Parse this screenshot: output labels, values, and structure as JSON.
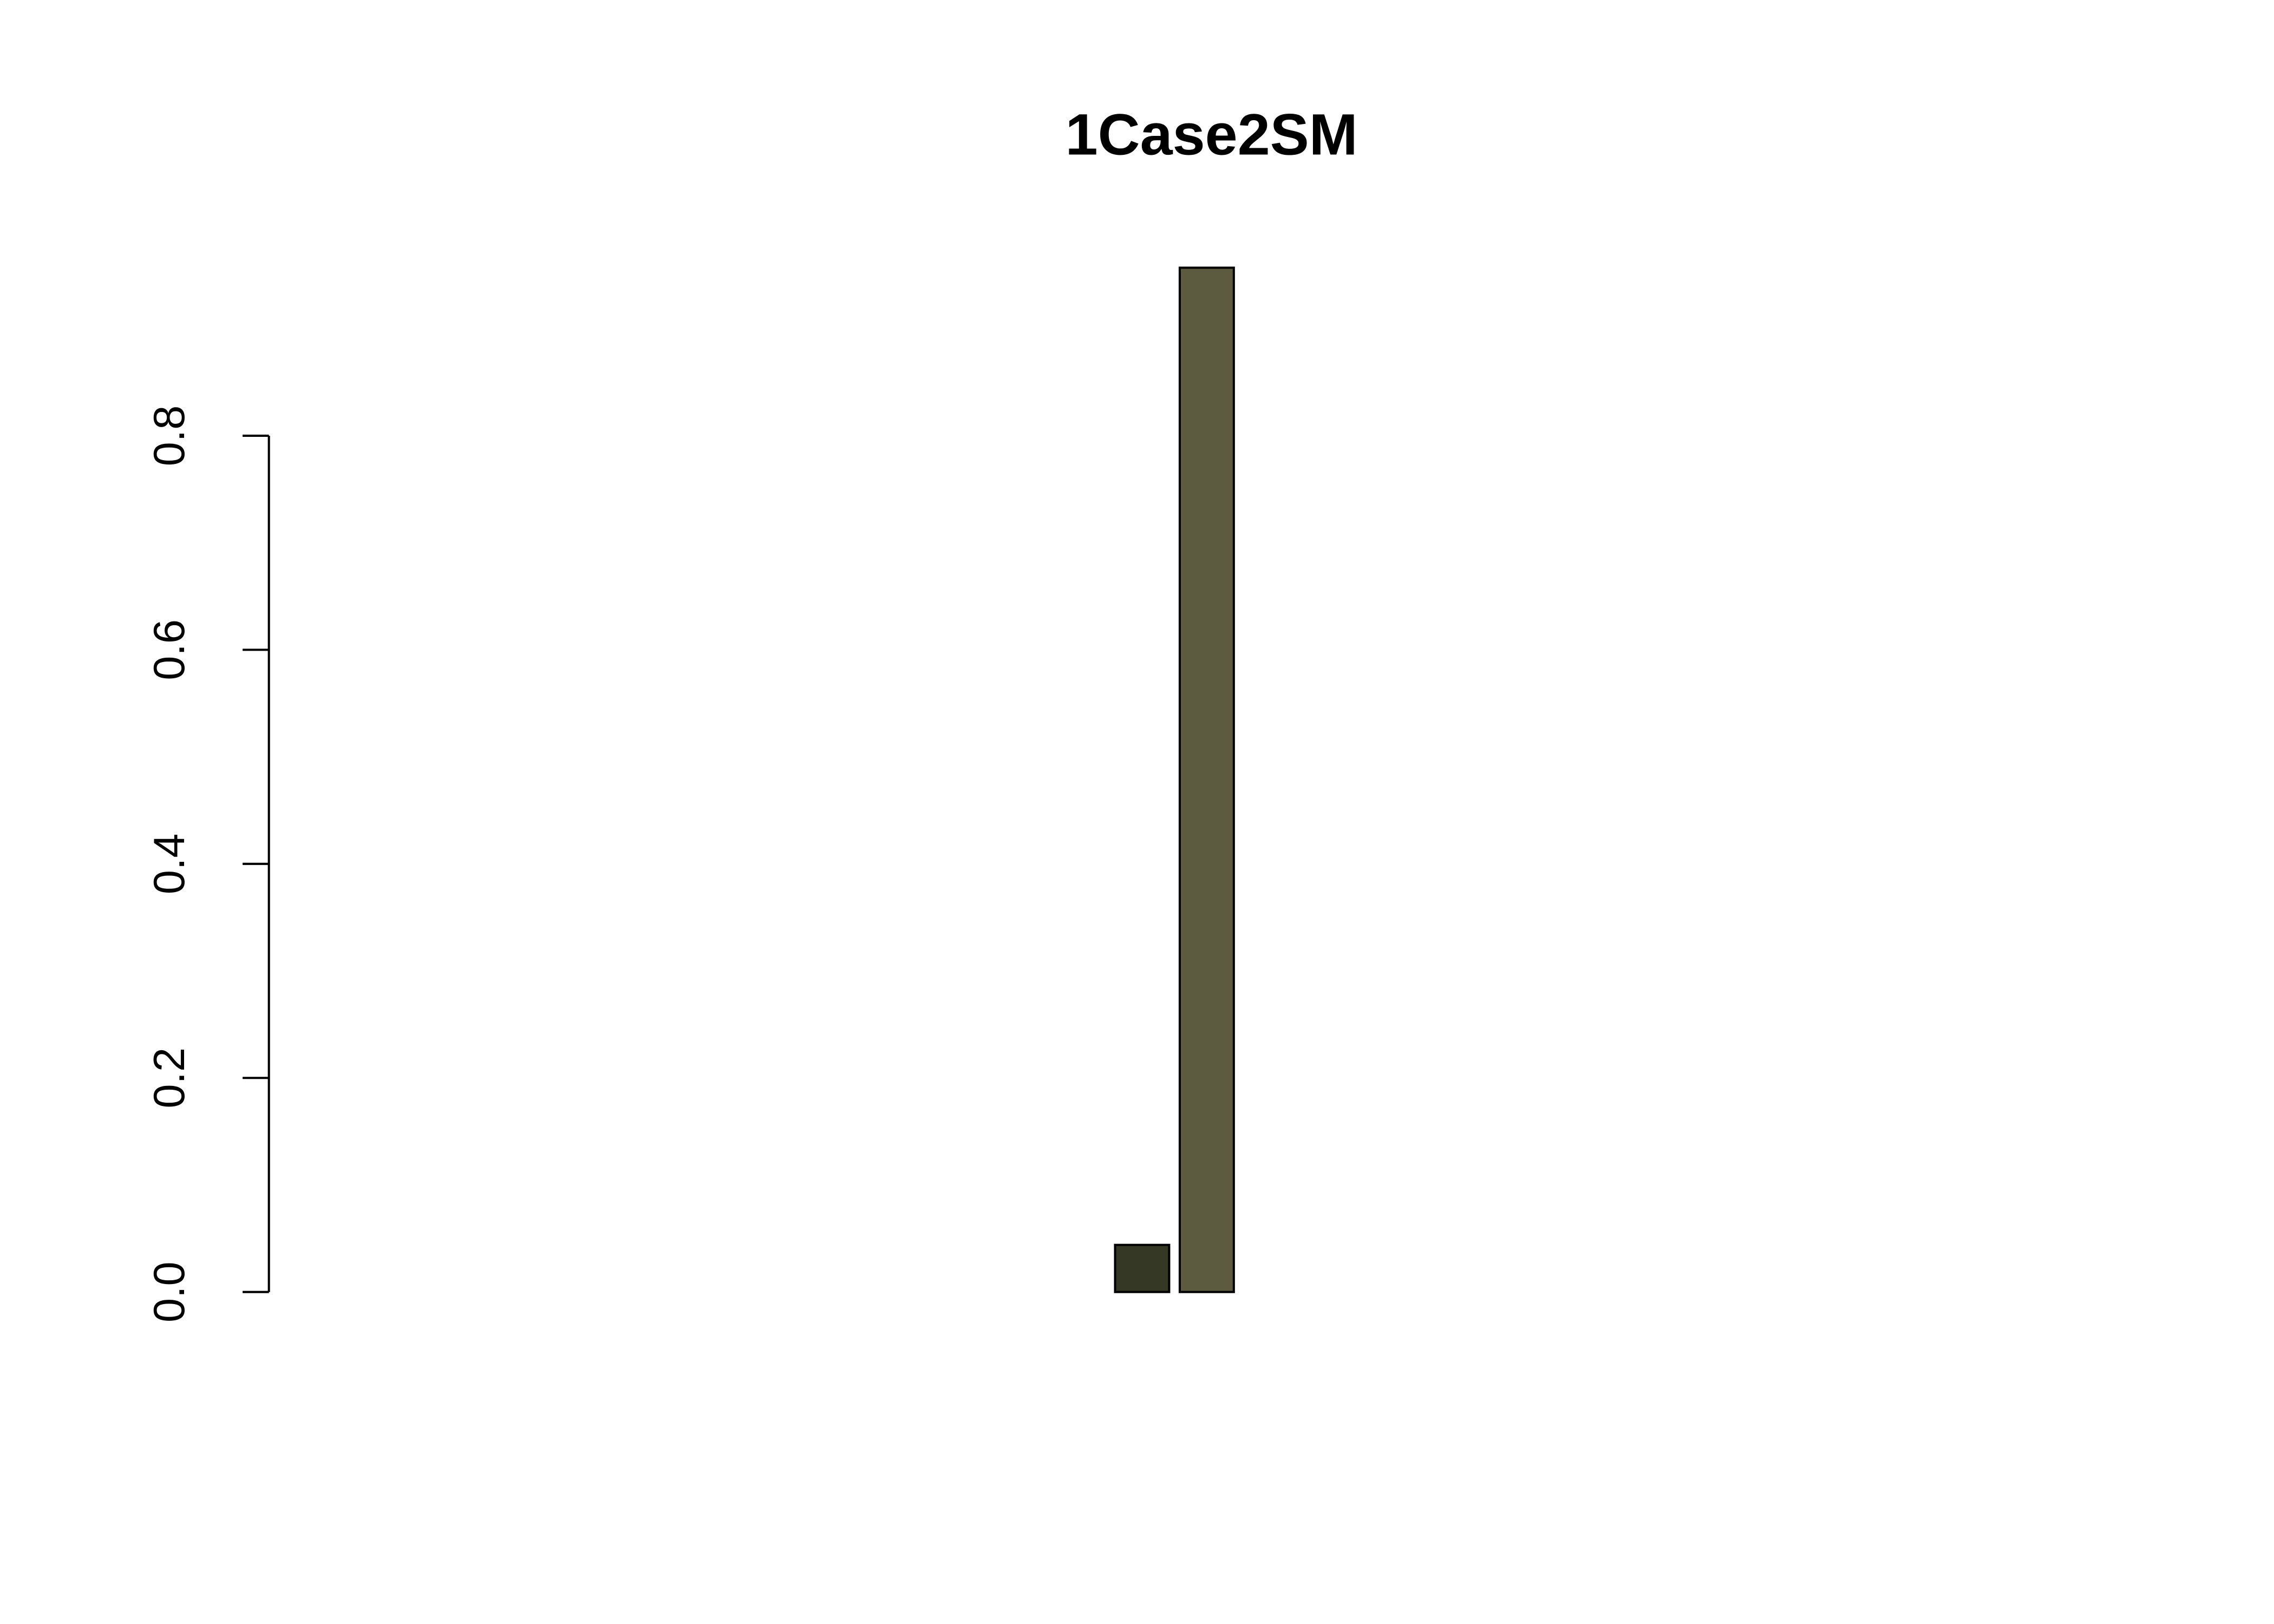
{
  "chart_data": {
    "type": "bar",
    "title": "1Case2SM",
    "categories": [
      null,
      null,
      null,
      null,
      null,
      null,
      null,
      null,
      null,
      null,
      null,
      null,
      null,
      null,
      null,
      null,
      null,
      null,
      null,
      null,
      null,
      null,
      null,
      null,
      null,
      null,
      null
    ],
    "values": [
      0,
      0,
      0,
      0,
      0,
      0,
      0,
      0,
      0,
      0,
      0,
      0,
      0.044,
      0.957,
      0,
      0,
      0,
      0,
      0,
      0,
      0,
      0,
      0,
      0,
      0,
      0,
      0
    ],
    "colors": [
      null,
      null,
      null,
      null,
      null,
      null,
      null,
      null,
      null,
      null,
      null,
      null,
      "#353825",
      "#5c5b3f",
      null,
      null,
      null,
      null,
      null,
      null,
      null,
      null,
      null,
      null,
      null,
      null,
      null
    ],
    "ylim": [
      0,
      1
    ],
    "yticks": [
      {
        "value": 0,
        "label": "0.0"
      },
      0.2,
      0.4,
      0.6,
      0.8
    ],
    "grid": false
  }
}
